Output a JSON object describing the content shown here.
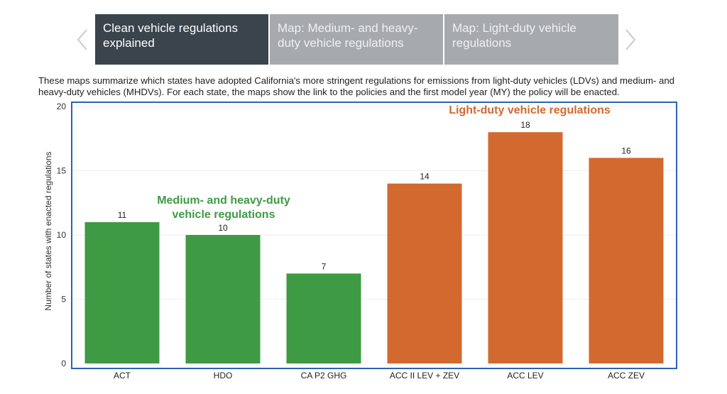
{
  "carousel": {
    "prev_icon": "chevron-left-icon",
    "next_icon": "chevron-right-icon",
    "tabs": [
      {
        "label": "Clean vehicle regulations explained",
        "active": true
      },
      {
        "label": "Map: Medium- and heavy-duty vehicle regulations",
        "active": false
      },
      {
        "label": "Map: Light-duty vehicle regulations",
        "active": false
      }
    ]
  },
  "description": "These maps summarize which states have adopted California's more stringent regulations for emissions from light-duty vehicles (LDVs) and medium- and heavy-duty vehicles (MHDVs). For each state, the maps show the link to the policies and the first model year (MY) the policy will be enacted.",
  "colors": {
    "mhdv": "#3f9a44",
    "ldv": "#d2692f",
    "plot_border": "#2c63b0",
    "grid": "#eeeeee",
    "tab_active": "#3b444c",
    "tab_inactive": "#a7aaad"
  },
  "chart_data": {
    "type": "bar",
    "categories": [
      "ACT",
      "HDO",
      "CA P2 GHG",
      "ACC II LEV + ZEV",
      "ACC LEV",
      "ACC ZEV"
    ],
    "values": [
      11,
      10,
      7,
      14,
      18,
      16
    ],
    "groups": [
      "mhdv",
      "mhdv",
      "mhdv",
      "ldv",
      "ldv",
      "ldv"
    ],
    "ylabel": "Number of states with enacted regulations",
    "xlabel": "",
    "ylim": [
      0,
      20
    ],
    "yticks": [
      0,
      5,
      10,
      15,
      20
    ],
    "grid": true,
    "annotations": [
      {
        "group": "mhdv",
        "lines": [
          "Medium- and heavy-duty",
          "vehicle regulations"
        ]
      },
      {
        "group": "ldv",
        "lines": [
          "Light-duty vehicle regulations"
        ]
      }
    ]
  }
}
